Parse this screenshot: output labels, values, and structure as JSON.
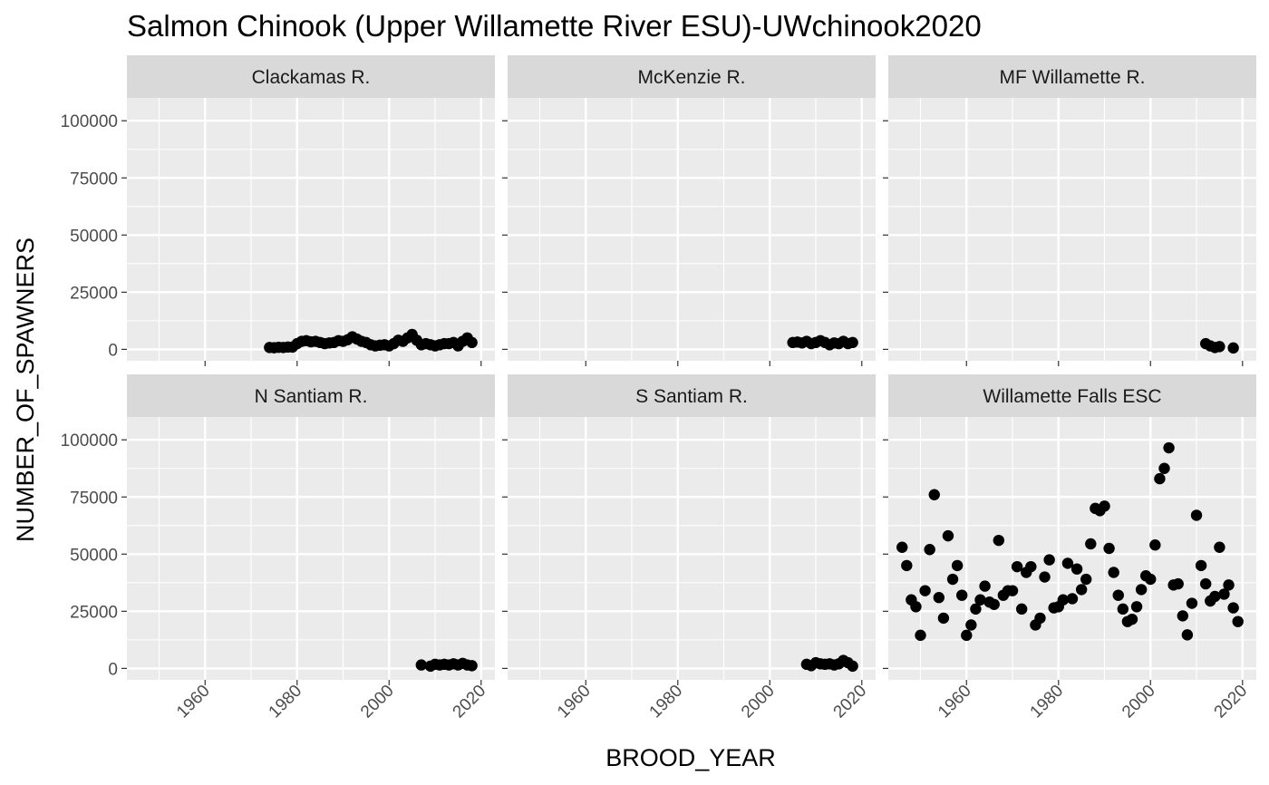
{
  "chart_data": {
    "type": "scatter",
    "title": "Salmon Chinook (Upper Willamette River ESU)-UWchinook2020",
    "xlabel": "BROOD_YEAR",
    "ylabel": "NUMBER_OF_SPAWNERS",
    "xlim": [
      1943,
      2023
    ],
    "ylim": [
      -5000,
      110000
    ],
    "x_ticks": [
      1960,
      1980,
      2000,
      2020
    ],
    "y_ticks": [
      0,
      25000,
      50000,
      75000,
      100000
    ],
    "x_tick_labels": [
      "1960",
      "1980",
      "2000",
      "2020"
    ],
    "y_tick_labels": [
      "0",
      "25000",
      "50000",
      "75000",
      "100000"
    ],
    "grid": true,
    "panel_background": "#ebebeb",
    "strip_background": "#d9d9d9",
    "point_color": "#000000",
    "facets": [
      {
        "name": "Clackamas R.",
        "x": [
          1974,
          1975,
          1976,
          1977,
          1978,
          1979,
          1980,
          1981,
          1982,
          1983,
          1984,
          1985,
          1986,
          1987,
          1988,
          1989,
          1990,
          1991,
          1992,
          1993,
          1994,
          1995,
          1996,
          1997,
          1998,
          1999,
          2000,
          2001,
          2002,
          2003,
          2004,
          2005,
          2006,
          2007,
          2008,
          2009,
          2010,
          2011,
          2012,
          2013,
          2014,
          2015,
          2016,
          2017,
          2018
        ],
        "y": [
          800,
          700,
          900,
          800,
          1000,
          1000,
          2500,
          3500,
          3800,
          3300,
          3500,
          3000,
          2500,
          2800,
          3000,
          3800,
          3500,
          4200,
          5500,
          4500,
          3500,
          3000,
          2000,
          1500,
          1800,
          2000,
          1500,
          2500,
          4000,
          3500,
          5000,
          6500,
          4000,
          2000,
          2500,
          2000,
          1500,
          2000,
          2500,
          2500,
          3000,
          1500,
          3500,
          5000,
          3000
        ]
      },
      {
        "name": "McKenzie R.",
        "x": [
          2005,
          2006,
          2007,
          2008,
          2009,
          2010,
          2011,
          2012,
          2013,
          2014,
          2015,
          2016,
          2017,
          2018
        ],
        "y": [
          3000,
          3200,
          2800,
          3500,
          2500,
          3000,
          3800,
          3000,
          2000,
          2800,
          2500,
          3500,
          2500,
          3000
        ]
      },
      {
        "name": "MF Willamette R.",
        "x": [
          2012,
          2013,
          2014,
          2015,
          2018
        ],
        "y": [
          2500,
          1500,
          800,
          1200,
          600
        ]
      },
      {
        "name": "N Santiam R.",
        "x": [
          2007,
          2009,
          2010,
          2011,
          2012,
          2013,
          2014,
          2015,
          2016,
          2017,
          2018
        ],
        "y": [
          1500,
          1000,
          1800,
          1500,
          1800,
          1500,
          2000,
          1500,
          2200,
          1500,
          1200
        ]
      },
      {
        "name": "S Santiam R.",
        "x": [
          2008,
          2009,
          2010,
          2011,
          2012,
          2013,
          2014,
          2015,
          2016,
          2017,
          2018
        ],
        "y": [
          1800,
          1200,
          2500,
          2000,
          1800,
          2000,
          1500,
          2000,
          3500,
          2500,
          1000
        ]
      },
      {
        "name": "Willamette Falls ESC",
        "x": [
          1946,
          1947,
          1948,
          1949,
          1950,
          1951,
          1952,
          1953,
          1954,
          1955,
          1956,
          1957,
          1958,
          1959,
          1960,
          1961,
          1962,
          1963,
          1964,
          1965,
          1966,
          1967,
          1968,
          1969,
          1970,
          1971,
          1972,
          1973,
          1974,
          1975,
          1976,
          1977,
          1978,
          1979,
          1980,
          1981,
          1982,
          1983,
          1984,
          1985,
          1986,
          1987,
          1988,
          1989,
          1990,
          1991,
          1992,
          1993,
          1994,
          1995,
          1996,
          1997,
          1998,
          1999,
          2000,
          2001,
          2002,
          2003,
          2004,
          2005,
          2006,
          2007,
          2008,
          2009,
          2010,
          2011,
          2012,
          2013,
          2014,
          2015,
          2016,
          2017,
          2018,
          2019
        ],
        "y": [
          53000,
          45000,
          30000,
          27000,
          14500,
          34000,
          52000,
          76000,
          31000,
          22000,
          58000,
          39000,
          45000,
          32000,
          14500,
          19000,
          26000,
          30000,
          36000,
          29000,
          28000,
          56000,
          32000,
          34000,
          34000,
          44500,
          26000,
          42000,
          44500,
          19000,
          22000,
          40000,
          47500,
          26500,
          27000,
          30000,
          46000,
          30500,
          43500,
          34500,
          39000,
          54500,
          70000,
          69000,
          71000,
          52500,
          42000,
          32000,
          26000,
          20500,
          21500,
          27000,
          34500,
          40500,
          39000,
          54000,
          83000,
          87500,
          96500,
          36500,
          37000,
          23000,
          14700,
          28500,
          67000,
          45000,
          37000,
          29500,
          31500,
          53000,
          32500,
          36500,
          26500,
          20500
        ]
      }
    ]
  }
}
